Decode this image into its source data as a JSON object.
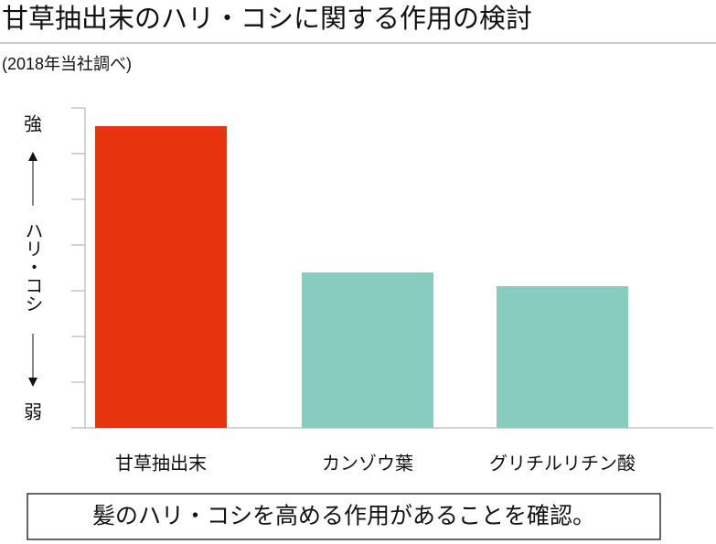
{
  "chart_data": {
    "type": "bar",
    "title": "甘草抽出末のハリ・コシに関する作用の検討",
    "subtitle": "(2018年当社調べ)",
    "y_axis_top": "強",
    "y_axis_label": "ハリ・コシ",
    "y_axis_bottom": "弱",
    "categories": [
      "甘草抽出末",
      "カンゾウ葉",
      "グリチルリチン酸"
    ],
    "values": [
      6.6,
      3.4,
      3.1
    ],
    "colors": [
      "#e8340e",
      "#88ccc0",
      "#88ccc0"
    ],
    "ylim": [
      0,
      7
    ],
    "yticks": [
      0,
      1,
      2,
      3,
      4,
      5,
      6,
      7
    ],
    "note": "髪のハリ・コシを高める作用があることを確認。"
  }
}
